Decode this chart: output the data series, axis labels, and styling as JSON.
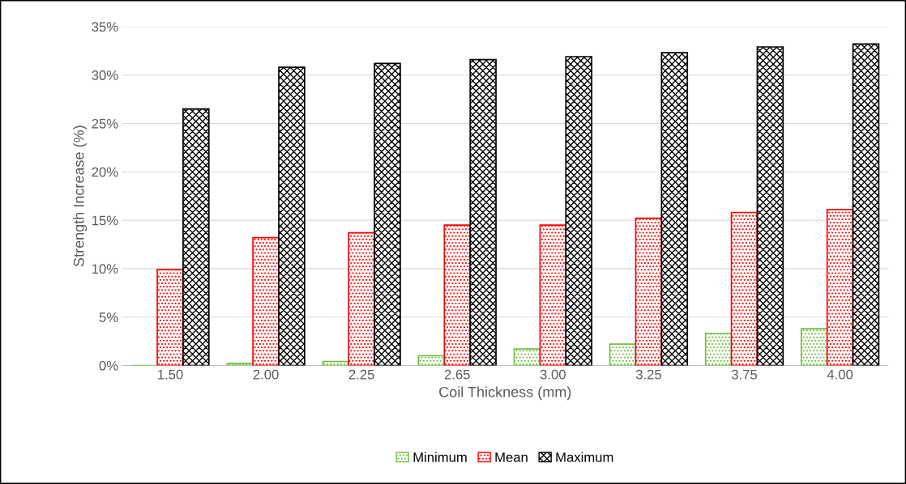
{
  "chart_data": {
    "type": "bar",
    "xlabel": "Coil Thickness (mm)",
    "ylabel": "Strength Increase (%)",
    "categories": [
      "1.50",
      "2.00",
      "2.25",
      "2.65",
      "3.00",
      "3.25",
      "3.75",
      "4.00"
    ],
    "series": [
      {
        "name": "Minimum",
        "color": "#70c040",
        "values": [
          0,
          0.2,
          0.4,
          1.0,
          1.7,
          2.2,
          3.3,
          3.8
        ]
      },
      {
        "name": "Mean",
        "color": "#ff0000",
        "values": [
          9.9,
          13.2,
          13.7,
          14.5,
          14.5,
          15.2,
          15.8,
          16.1
        ]
      },
      {
        "name": "Maximum",
        "color": "#000000",
        "values": [
          26.5,
          30.8,
          31.2,
          31.6,
          31.9,
          32.3,
          32.9,
          33.2
        ]
      }
    ],
    "ylim": [
      0,
      35
    ],
    "yticks": [
      {
        "value": 0,
        "label": "0%"
      },
      {
        "value": 5,
        "label": "5%"
      },
      {
        "value": 10,
        "label": "10%"
      },
      {
        "value": 15,
        "label": "15%"
      },
      {
        "value": 20,
        "label": "20%"
      },
      {
        "value": 25,
        "label": "25%"
      },
      {
        "value": 30,
        "label": "30%"
      },
      {
        "value": 35,
        "label": "35%"
      }
    ],
    "grid": "y",
    "legend": "bottom"
  }
}
